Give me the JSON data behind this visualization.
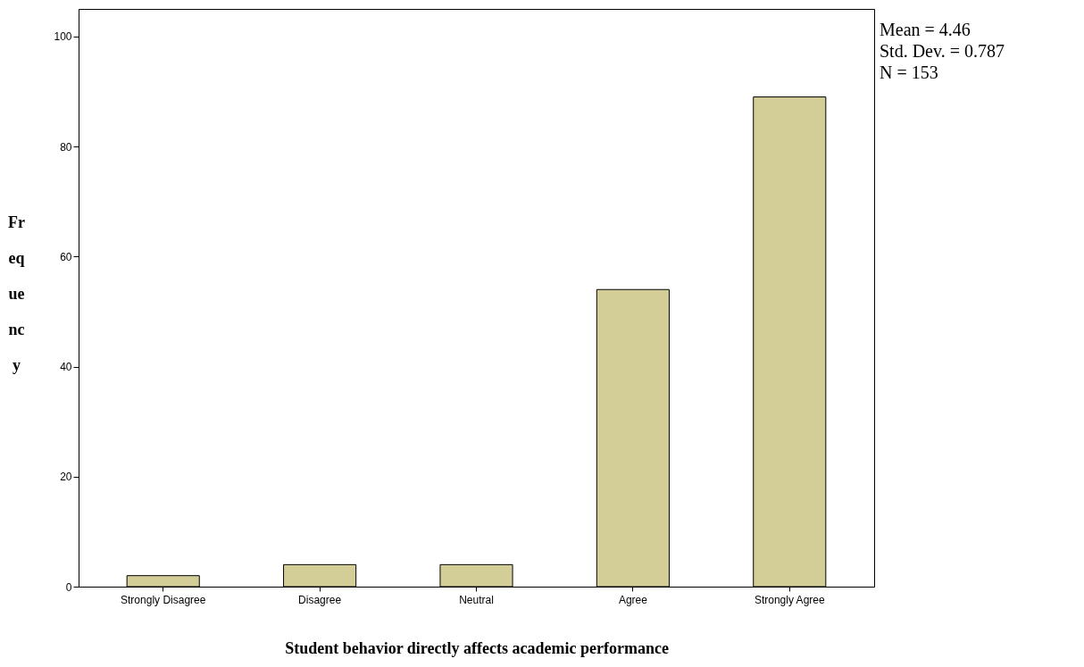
{
  "chart_data": {
    "type": "bar",
    "xlabel": "Student behavior directly affects academic performance",
    "ylabel": "Frequency",
    "categories": [
      "Strongly Disagree",
      "Disagree",
      "Neutral",
      "Agree",
      "Strongly Agree"
    ],
    "values": [
      2,
      4,
      4,
      54,
      89
    ],
    "color": "#d3ce97",
    "ylim": [
      0,
      105
    ],
    "yticks": [
      0,
      20,
      40,
      60,
      80,
      100
    ],
    "grid": false,
    "annotations": [
      "Mean = 4.46",
      "Std. Dev. =  0.787",
      "N = 153"
    ]
  }
}
